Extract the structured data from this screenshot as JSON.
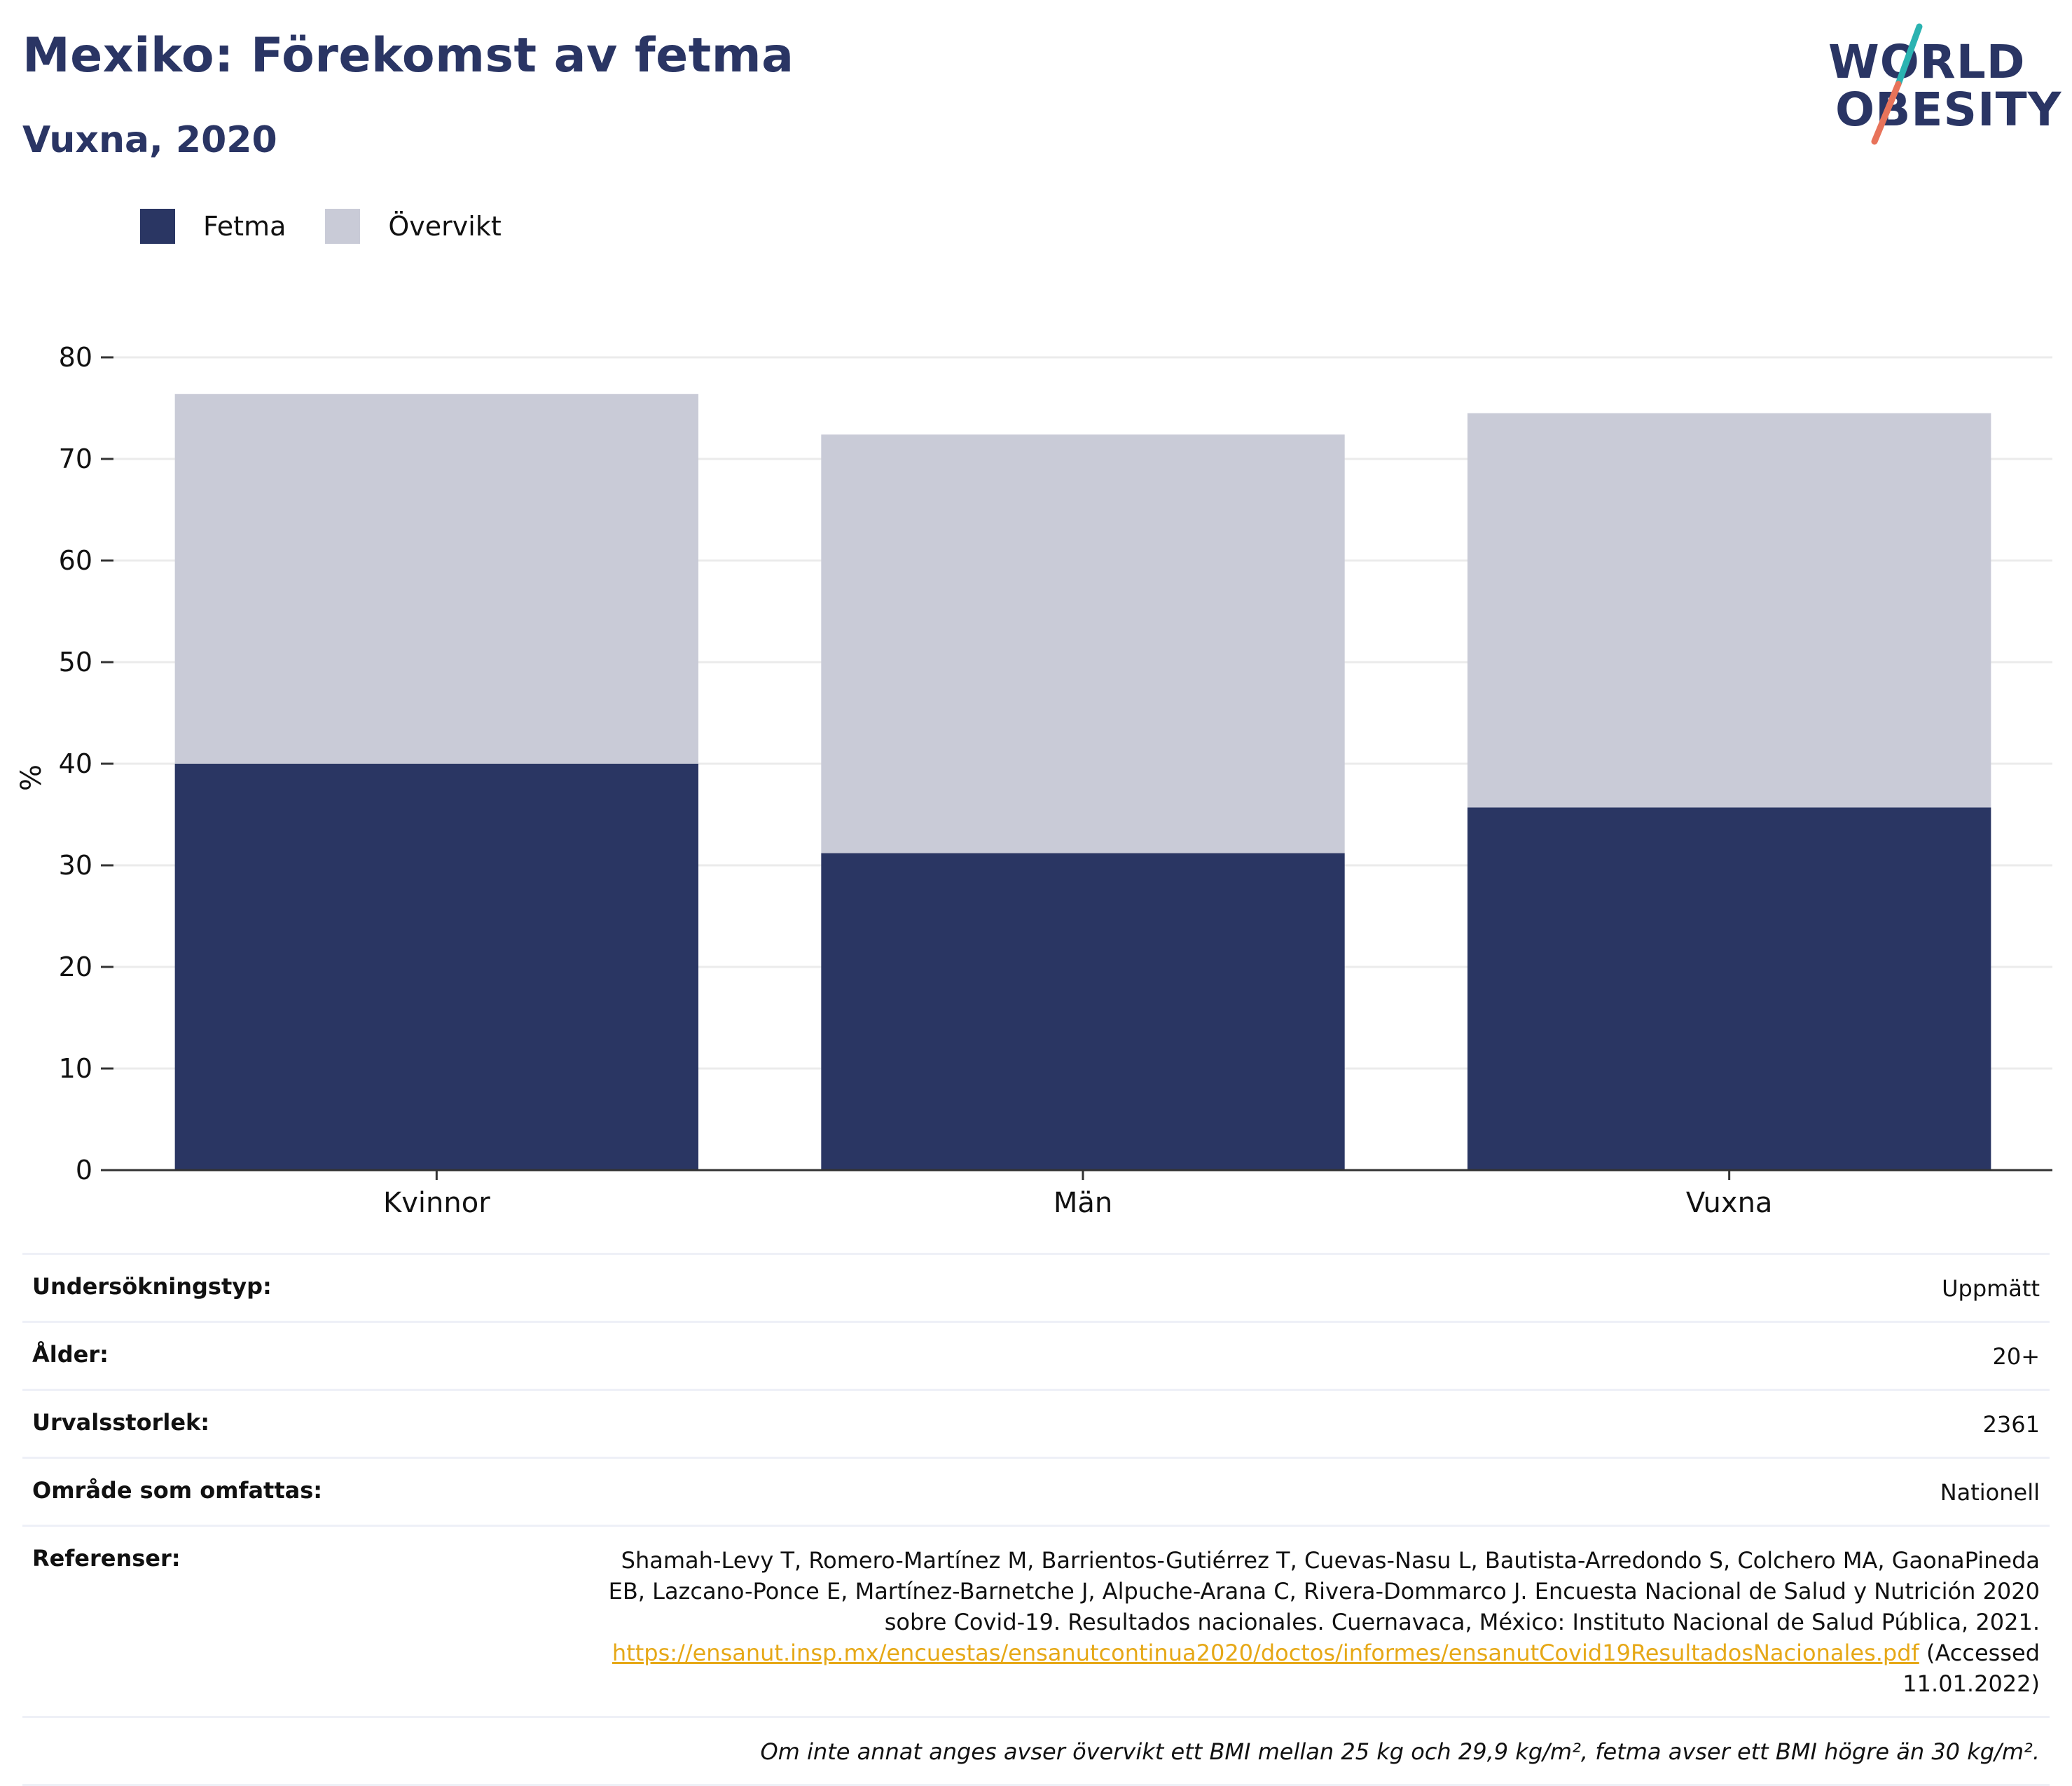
{
  "header": {
    "title": "Mexiko: Förekomst av fetma",
    "subtitle": "Vuxna, 2020"
  },
  "logo": {
    "line1": "WORLD",
    "line2": "OBESITY",
    "accent_top": "#2bb3b1",
    "accent_bottom": "#e8735a"
  },
  "colors": {
    "fetma": "#2a3663",
    "overvikt": "#c9cbd7",
    "text_dark": "#2a3564",
    "link": "#e6a817"
  },
  "chart_data": {
    "type": "bar",
    "stacked": true,
    "title": "Mexiko: Förekomst av fetma",
    "subtitle": "Vuxna, 2020",
    "xlabel": "",
    "ylabel": "%",
    "ylim": [
      0,
      80
    ],
    "yticks": [
      0,
      10,
      20,
      30,
      40,
      50,
      60,
      70,
      80
    ],
    "grid": true,
    "legend": "top-left",
    "categories": [
      "Kvinnor",
      "Män",
      "Vuxna"
    ],
    "series": [
      {
        "name": "Fetma",
        "values": [
          40.0,
          31.2,
          35.7
        ]
      },
      {
        "name": "Övervikt",
        "values": [
          36.4,
          41.2,
          38.8
        ]
      }
    ]
  },
  "info": {
    "rows": [
      {
        "key": "Undersökningstyp:",
        "value": "Uppmätt"
      },
      {
        "key": "Ålder:",
        "value": "20+"
      },
      {
        "key": "Urvalsstorlek:",
        "value": "2361"
      },
      {
        "key": "Område som omfattas:",
        "value": "Nationell"
      }
    ],
    "references": {
      "key": "Referenser:",
      "text": "Shamah-Levy T, Romero-Martínez M, Barrientos-Gutiérrez T, Cuevas-Nasu L, Bautista-Arredondo S, Colchero MA, GaonaPineda EB, Lazcano-Ponce E, Martínez-Barnetche J, Alpuche-Arana C, Rivera-Dommarco J. Encuesta Nacional de Salud y Nutrición 2020 sobre Covid-19. Resultados nacionales. Cuernavaca, México: Instituto Nacional de Salud Pública, 2021.",
      "link": "https://ensanut.insp.mx/encuestas/ensanutcontinua2020/doctos/informes/ensanutCovid19ResultadosNacionales.pdf",
      "accessed": "(Accessed 11.01.2022)"
    },
    "note": "Om inte annat anges avser övervikt ett BMI mellan 25 kg och 29,9 kg/m², fetma avser ett BMI högre än 30 kg/m²."
  }
}
